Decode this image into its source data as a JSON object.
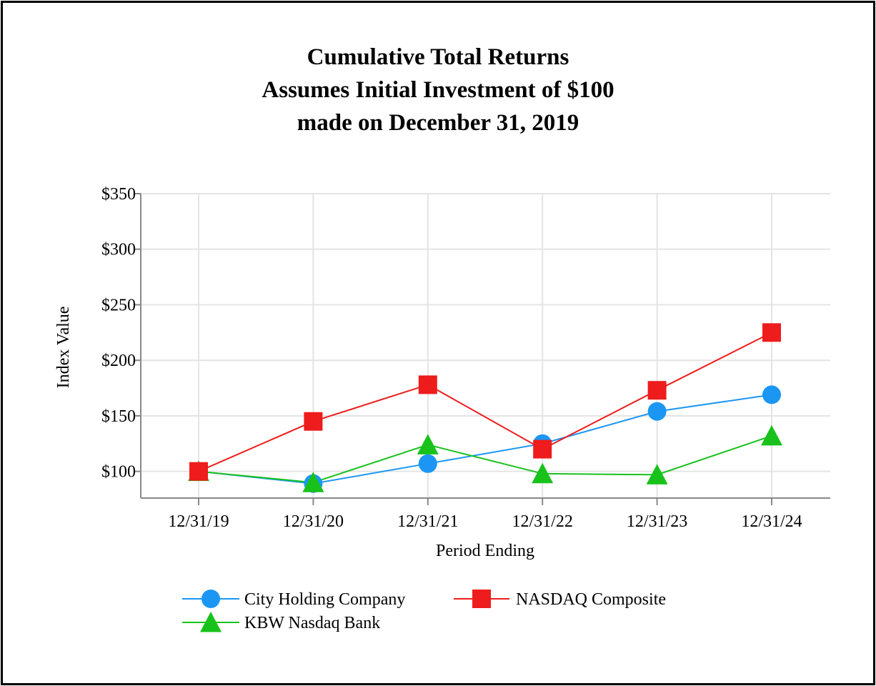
{
  "chart_data": {
    "type": "line",
    "title": [
      "Cumulative Total Returns",
      "Assumes Initial Investment of $100",
      "made on December 31, 2019"
    ],
    "xlabel": "Period Ending",
    "ylabel": "Index Value",
    "categories": [
      "12/31/19",
      "12/31/20",
      "12/31/21",
      "12/31/22",
      "12/31/23",
      "12/31/24"
    ],
    "ylim": [
      76,
      350
    ],
    "yticks": [
      100,
      150,
      200,
      250,
      300,
      350
    ],
    "ytick_labels": [
      "$100",
      "$150",
      "$200",
      "$250",
      "$300",
      "$350"
    ],
    "grid": true,
    "legend_position": "bottom",
    "series": [
      {
        "name": "City Holding Company",
        "color": "#1b97f3",
        "marker": "circle",
        "values": [
          100,
          89,
          107,
          125,
          154,
          169
        ]
      },
      {
        "name": "NASDAQ Composite",
        "color": "#ee1c1c",
        "marker": "square",
        "values": [
          100,
          145,
          178,
          120,
          173,
          225
        ]
      },
      {
        "name": "KBW Nasdaq Bank",
        "color": "#18c21b",
        "marker": "triangle",
        "values": [
          100,
          90,
          124,
          98,
          97,
          132
        ]
      }
    ]
  }
}
